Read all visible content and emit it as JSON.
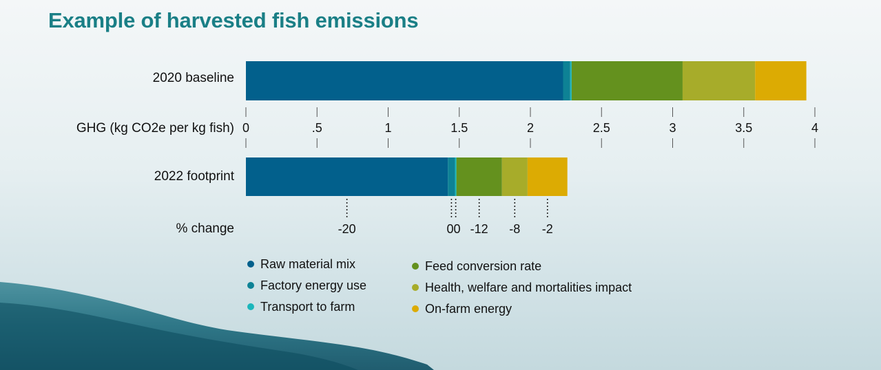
{
  "title": "Example of harvested fish emissions",
  "colors": {
    "raw_material": "#02608c",
    "factory": "#0e8295",
    "transport": "#1cb6bb",
    "feed": "#64911e",
    "health": "#a7ac2a",
    "onfarm": "#dcab03",
    "title": "#1a7f86"
  },
  "chart_data": {
    "type": "bar",
    "orientation": "horizontal",
    "stacked": true,
    "title": "Example of harvested fish emissions",
    "xlabel": "GHG (kg CO2e per kg fish)",
    "xlim": [
      0,
      4
    ],
    "ticks": [
      "0",
      ".5",
      "1",
      "1.5",
      "2",
      "2.5",
      "3",
      "3.5",
      "4"
    ],
    "tick_values": [
      0,
      0.5,
      1,
      1.5,
      2,
      2.5,
      3,
      3.5,
      4
    ],
    "categories": [
      "2020 baseline",
      "2022 footprint"
    ],
    "series": [
      {
        "name": "Raw material mix",
        "color": "#02608c",
        "values": [
          2.23,
          1.42
        ]
      },
      {
        "name": "Factory energy use",
        "color": "#0e8295",
        "values": [
          0.05,
          0.05
        ]
      },
      {
        "name": "Transport to farm",
        "color": "#1cb6bb",
        "values": [
          0.01,
          0.01
        ]
      },
      {
        "name": "Feed conversion rate",
        "color": "#64911e",
        "values": [
          0.78,
          0.32
        ]
      },
      {
        "name": "Health, welfare and mortalities impact",
        "color": "#a7ac2a",
        "values": [
          0.51,
          0.18
        ]
      },
      {
        "name": "On-farm energy",
        "color": "#dcab03",
        "values": [
          0.36,
          0.28
        ]
      }
    ],
    "change_label": "% change",
    "changes": [
      "-20",
      "0",
      "0",
      "-12",
      "-8",
      "-2"
    ],
    "grid": false,
    "legend_position": "bottom"
  }
}
